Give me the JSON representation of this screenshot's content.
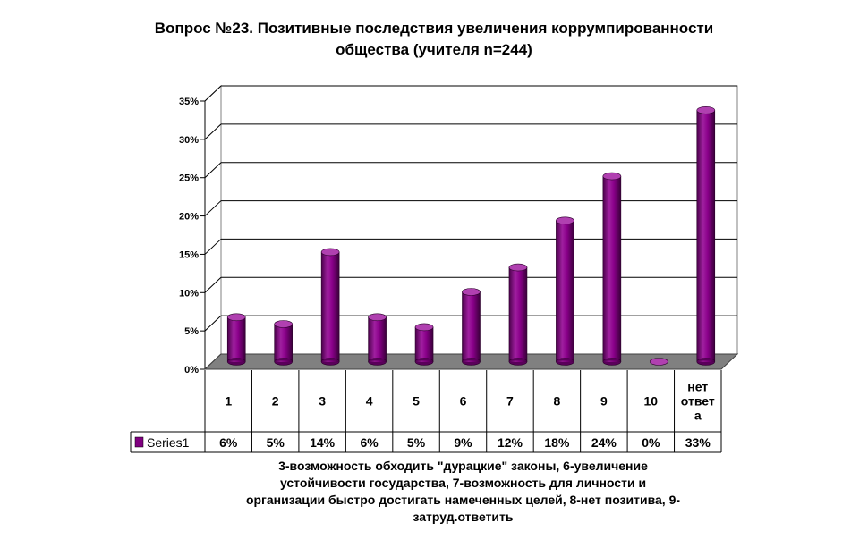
{
  "title_line1": "Вопрос №23. Позитивные последствия увеличения коррумпированности",
  "title_line2": "общества (учителя n=244)",
  "footnote_lines": [
    "3-возможность обходить \"дурацкие\" законы, 6-увеличение",
    "устойчивости государства, 7-возможность для личности и",
    "организации быстро достигать намеченных целей, 8-нет позитива, 9-",
    "затруд.ответить"
  ],
  "chart_data": {
    "type": "bar",
    "title": "Вопрос №23. Позитивные последствия увеличения коррумпированности общества (учителя n=244)",
    "categories": [
      "1",
      "2",
      "3",
      "4",
      "5",
      "6",
      "7",
      "8",
      "9",
      "10",
      "нет ответа"
    ],
    "category_lines": [
      [
        "1"
      ],
      [
        "2"
      ],
      [
        "3"
      ],
      [
        "4"
      ],
      [
        "5"
      ],
      [
        "6"
      ],
      [
        "7"
      ],
      [
        "8"
      ],
      [
        "9"
      ],
      [
        "10"
      ],
      [
        "нет",
        "ответ",
        "а"
      ]
    ],
    "series": [
      {
        "name": "Series1",
        "values": [
          5.8,
          4.9,
          14.3,
          5.8,
          4.5,
          9.1,
          12.3,
          18.4,
          24.2,
          0,
          32.8
        ],
        "labels": [
          "6%",
          "5%",
          "14%",
          "6%",
          "5%",
          "9%",
          "12%",
          "18%",
          "24%",
          "0%",
          "33%"
        ],
        "color": "#800080"
      }
    ],
    "y_ticks": [
      "0%",
      "5%",
      "10%",
      "15%",
      "20%",
      "25%",
      "30%",
      "35%"
    ],
    "ylim": [
      0,
      35
    ],
    "grid": true,
    "legend": "data-table",
    "style": "3d-cylinder"
  }
}
